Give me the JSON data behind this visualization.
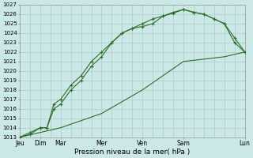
{
  "xlabel": "Pression niveau de la mer( hPa )",
  "background_color": "#cce8e6",
  "grid_color": "#aaccca",
  "line_color": "#2d6e2d",
  "ylim_min": 1013,
  "ylim_max": 1027,
  "yticks": [
    1013,
    1014,
    1015,
    1016,
    1017,
    1018,
    1019,
    1020,
    1021,
    1022,
    1023,
    1024,
    1025,
    1026,
    1027
  ],
  "x_tick_positions": [
    0,
    1,
    2,
    4,
    6,
    8,
    11
  ],
  "x_tick_labels": [
    "Jeu",
    "Dim",
    "Mar",
    "Mer",
    "Ven",
    "Sam",
    "Lun"
  ],
  "xmin": 0,
  "xmax": 11,
  "line1_x": [
    0,
    0.5,
    1.0,
    1.33,
    1.67,
    2.0,
    2.5,
    3.0,
    3.5,
    4.0,
    4.5,
    5.0,
    5.5,
    6.0,
    6.5,
    7.0,
    7.5,
    8.0,
    8.5,
    9.0,
    9.5,
    10.0,
    10.5,
    11.0
  ],
  "line1_y": [
    1013,
    1013.3,
    1014.0,
    1014.0,
    1016.5,
    1017.0,
    1018.5,
    1019.5,
    1021.0,
    1022.0,
    1023.0,
    1024.0,
    1024.5,
    1024.7,
    1025.0,
    1025.8,
    1026.1,
    1026.5,
    1026.2,
    1026.0,
    1025.5,
    1025.0,
    1023.5,
    1022.0
  ],
  "line2_x": [
    0,
    0.5,
    1.0,
    1.33,
    1.67,
    2.0,
    2.5,
    3.0,
    3.5,
    4.0,
    4.5,
    5.0,
    5.5,
    6.0,
    6.5,
    7.0,
    7.5,
    8.0,
    8.5,
    9.0,
    9.5,
    10.0,
    10.5,
    11.0
  ],
  "line2_y": [
    1013,
    1013.5,
    1014.0,
    1014.0,
    1016.0,
    1016.5,
    1018.0,
    1019.0,
    1020.5,
    1021.5,
    1023.0,
    1024.0,
    1024.5,
    1025.0,
    1025.5,
    1025.8,
    1026.2,
    1026.5,
    1026.2,
    1026.0,
    1025.5,
    1025.0,
    1023.0,
    1022.0
  ],
  "line3_x": [
    0,
    2,
    4,
    6,
    8,
    10,
    11
  ],
  "line3_y": [
    1013,
    1014,
    1015.5,
    1018,
    1021,
    1021.5,
    1022
  ],
  "figwidth": 3.2,
  "figheight": 2.0,
  "dpi": 100
}
